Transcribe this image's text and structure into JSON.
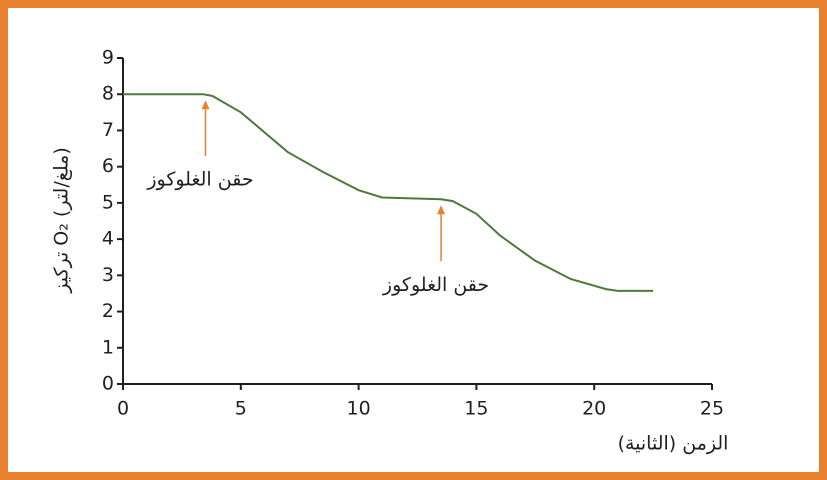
{
  "chart_data": {
    "type": "line",
    "x_label": "الزمن (الثانية)",
    "y_label": "تركيز O₂ (ملغ/لتر)",
    "xlim": [
      0,
      25
    ],
    "xticks": [
      0,
      5,
      10,
      15,
      20,
      25
    ],
    "ylim": [
      0,
      9
    ],
    "yticks": [
      0,
      1,
      2,
      3,
      4,
      5,
      6,
      7,
      8,
      9
    ],
    "x": [
      0,
      3.4,
      3.8,
      5,
      7,
      8.5,
      10,
      11,
      13.5,
      14,
      15,
      16,
      17.5,
      19,
      20.5,
      21,
      22.5
    ],
    "values": [
      8,
      8,
      7.95,
      7.5,
      6.4,
      5.85,
      5.35,
      5.15,
      5.1,
      5.05,
      4.7,
      4.1,
      3.4,
      2.9,
      2.62,
      2.57,
      2.57
    ],
    "color": "#4d7a3a",
    "annotations": [
      {
        "text": "حقن الغلوكوز",
        "x": 3.5,
        "y": 8
      },
      {
        "text": "حقن الغلوكوز",
        "x": 13.5,
        "y": 5.1
      }
    ],
    "annotation_color": "#e8812f"
  }
}
